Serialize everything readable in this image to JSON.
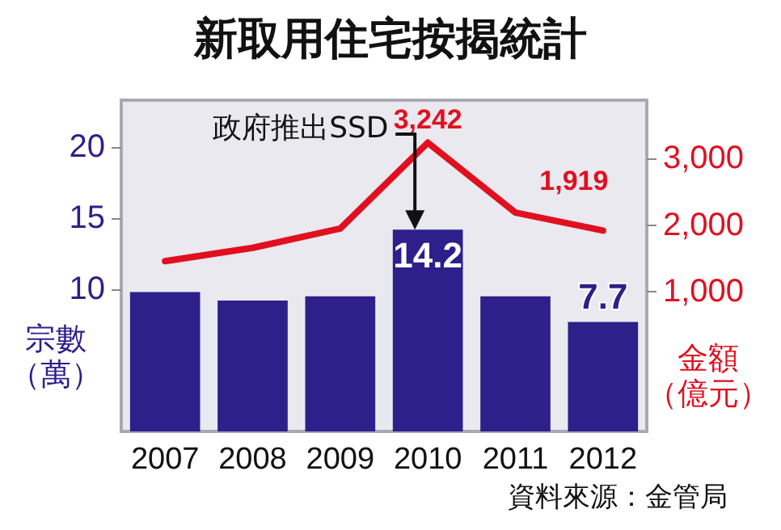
{
  "chart_data": {
    "type": "bar",
    "title": "新取用住宅按揭統計",
    "ylabel": "宗數（萬）",
    "y2label": "金額（億元）",
    "categories": [
      "2007",
      "2008",
      "2009",
      "2010",
      "2011",
      "2012"
    ],
    "series": [
      {
        "color": "#2e1f8a",
        "values": [
          9.8,
          9.2,
          9.5,
          14.2,
          9.5,
          7.7
        ],
        "value_labels": [
          null,
          null,
          null,
          "14.2",
          null,
          "7.7"
        ]
      },
      {
        "type": "line",
        "axis": "y2",
        "color": "#e01020",
        "values": [
          1460,
          1660,
          1950,
          3242,
          2190,
          1919
        ],
        "value_labels": [
          null,
          null,
          null,
          "3,242",
          null,
          "1,919"
        ]
      }
    ],
    "ylim": [
      0,
      23.3
    ],
    "yticks": [
      10,
      15,
      20
    ],
    "y2lim": [
      -1100,
      3880
    ],
    "y2ticks": [
      {
        "value": 1000,
        "label": "1,000"
      },
      {
        "value": 2000,
        "label": "2,000"
      },
      {
        "value": 3000,
        "label": "3,000"
      }
    ],
    "annotations": [
      "政府推出SSD",
      "資料來源：金管局"
    ],
    "grid": false,
    "marker": "none",
    "line_style": "solid"
  }
}
